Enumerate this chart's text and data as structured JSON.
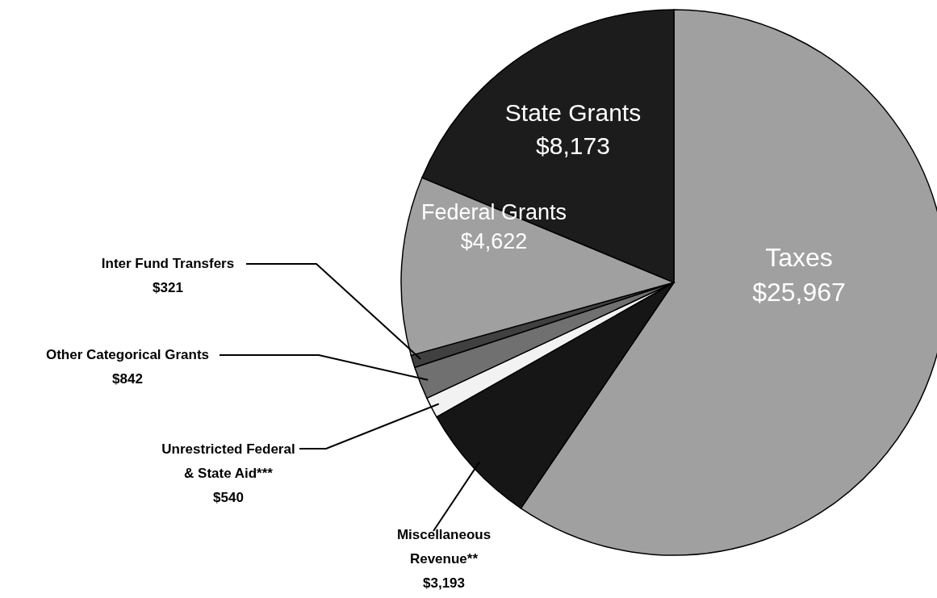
{
  "chart_data": {
    "type": "pie",
    "categories": [
      "Taxes",
      "Miscellaneous Revenue**",
      "Unrestricted Federal & State Aid***",
      "Other Categorical Grants",
      "Inter Fund Transfers",
      "Federal Grants",
      "State Grants"
    ],
    "values": [
      25967,
      3193,
      540,
      842,
      321,
      4622,
      8173
    ],
    "value_labels": [
      "$25,967",
      "$3,193",
      "$540",
      "$842",
      "$321",
      "$4,622",
      "$8,173"
    ],
    "colors": [
      "#a0a0a0",
      "#161616",
      "#f2f2f2",
      "#707070",
      "#404040",
      "#a0a0a0",
      "#1c1c1c"
    ]
  }
}
